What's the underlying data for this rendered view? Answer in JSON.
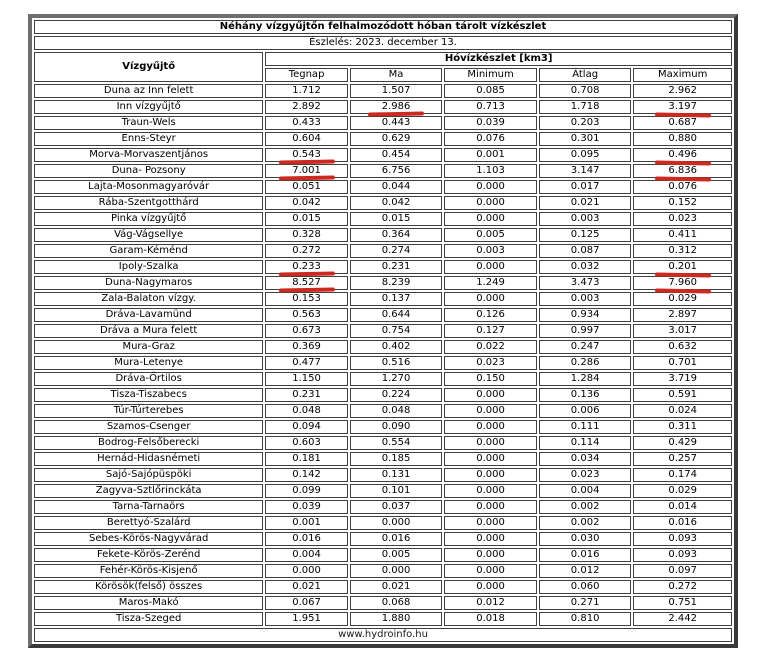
{
  "table": {
    "title": "Néhány vízgyűjtőn felhalmozódott hóban tárolt vízkészlet",
    "subtitle": "Észlelés: 2023. december 13.",
    "header": {
      "catchment_label": "Vízgyűjtő",
      "group_label": "Hóvízkészlet [km3]",
      "columns": [
        "Tegnap",
        "Ma",
        "Minimum",
        "Átlag",
        "Maximum"
      ]
    },
    "rows": [
      {
        "name": "Duna az Inn felett",
        "values": [
          "1.712",
          "1.507",
          "0.085",
          "0.708",
          "2.962"
        ]
      },
      {
        "name": "Inn vízgyűjtő",
        "values": [
          "2.892",
          "2.986",
          "0.713",
          "1.718",
          "3.197"
        ]
      },
      {
        "name": "Traun-Wels",
        "values": [
          "0.433",
          "0.443",
          "0.039",
          "0.203",
          "0.687"
        ]
      },
      {
        "name": "Enns-Steyr",
        "values": [
          "0.604",
          "0.629",
          "0.076",
          "0.301",
          "0.880"
        ]
      },
      {
        "name": "Morva-Morvaszentjános",
        "values": [
          "0.543",
          "0.454",
          "0.001",
          "0.095",
          "0.496"
        ]
      },
      {
        "name": "Duna- Pozsony",
        "values": [
          "7.001",
          "6.756",
          "1.103",
          "3.147",
          "6.836"
        ]
      },
      {
        "name": "Lajta-Mosonmagyaróvár",
        "values": [
          "0.051",
          "0.044",
          "0.000",
          "0.017",
          "0.076"
        ]
      },
      {
        "name": "Rába-Szentgotthárd",
        "values": [
          "0.042",
          "0.042",
          "0.000",
          "0.021",
          "0.152"
        ]
      },
      {
        "name": "Pinka vízgyűjtő",
        "values": [
          "0.015",
          "0.015",
          "0.000",
          "0.003",
          "0.023"
        ]
      },
      {
        "name": "Vág-Vágsellye",
        "values": [
          "0.328",
          "0.364",
          "0.005",
          "0.125",
          "0.411"
        ]
      },
      {
        "name": "Garam-Kéménd",
        "values": [
          "0.272",
          "0.274",
          "0.003",
          "0.087",
          "0.312"
        ]
      },
      {
        "name": "Ipoly-Szalka",
        "values": [
          "0.233",
          "0.231",
          "0.000",
          "0.032",
          "0.201"
        ]
      },
      {
        "name": "Duna-Nagymaros",
        "values": [
          "8.527",
          "8.239",
          "1.249",
          "3.473",
          "7.960"
        ]
      },
      {
        "name": "Zala-Balaton vízgy.",
        "values": [
          "0.153",
          "0.137",
          "0.000",
          "0.003",
          "0.029"
        ]
      },
      {
        "name": "Dráva-Lavamünd",
        "values": [
          "0.563",
          "0.644",
          "0.126",
          "0.934",
          "2.897"
        ]
      },
      {
        "name": "Dráva a Mura felett",
        "values": [
          "0.673",
          "0.754",
          "0.127",
          "0.997",
          "3.017"
        ]
      },
      {
        "name": "Mura-Graz",
        "values": [
          "0.369",
          "0.402",
          "0.022",
          "0.247",
          "0.632"
        ]
      },
      {
        "name": "Mura-Letenye",
        "values": [
          "0.477",
          "0.516",
          "0.023",
          "0.286",
          "0.701"
        ]
      },
      {
        "name": "Dráva-Őrtilos",
        "values": [
          "1.150",
          "1.270",
          "0.150",
          "1.284",
          "3.719"
        ]
      },
      {
        "name": "Tisza-Tiszabecs",
        "values": [
          "0.231",
          "0.224",
          "0.000",
          "0.136",
          "0.591"
        ]
      },
      {
        "name": "Túr-Túrterebes",
        "values": [
          "0.048",
          "0.048",
          "0.000",
          "0.006",
          "0.024"
        ]
      },
      {
        "name": "Szamos-Csenger",
        "values": [
          "0.094",
          "0.090",
          "0.000",
          "0.111",
          "0.311"
        ]
      },
      {
        "name": "Bodrog-Felsőberecki",
        "values": [
          "0.603",
          "0.554",
          "0.000",
          "0.114",
          "0.429"
        ]
      },
      {
        "name": "Hernád-Hidasnémeti",
        "values": [
          "0.181",
          "0.185",
          "0.000",
          "0.034",
          "0.257"
        ]
      },
      {
        "name": "Sajó-Sajópüspöki",
        "values": [
          "0.142",
          "0.131",
          "0.000",
          "0.023",
          "0.174"
        ]
      },
      {
        "name": "Zagyva-Sztlőrinckáta",
        "values": [
          "0.099",
          "0.101",
          "0.000",
          "0.004",
          "0.029"
        ]
      },
      {
        "name": "Tarna-Tarnaörs",
        "values": [
          "0.039",
          "0.037",
          "0.000",
          "0.002",
          "0.014"
        ]
      },
      {
        "name": "Berettyó-Szalárd",
        "values": [
          "0.001",
          "0.000",
          "0.000",
          "0.002",
          "0.016"
        ]
      },
      {
        "name": "Sebes-Körös-Nagyvárad",
        "values": [
          "0.016",
          "0.016",
          "0.000",
          "0.030",
          "0.093"
        ]
      },
      {
        "name": "Fekete-Körös-Zerénd",
        "values": [
          "0.004",
          "0.005",
          "0.000",
          "0.016",
          "0.093"
        ]
      },
      {
        "name": "Fehér-Körös-Kisjenő",
        "values": [
          "0.000",
          "0.000",
          "0.000",
          "0.012",
          "0.097"
        ]
      },
      {
        "name": "Körösök(felső) összes",
        "values": [
          "0.021",
          "0.021",
          "0.000",
          "0.060",
          "0.272"
        ]
      },
      {
        "name": "Maros-Makó",
        "values": [
          "0.067",
          "0.068",
          "0.012",
          "0.271",
          "0.751"
        ]
      },
      {
        "name": "Tisza-Szeged",
        "values": [
          "1.951",
          "1.880",
          "0.018",
          "0.810",
          "2.442"
        ]
      }
    ],
    "footer": "www.hydroinfo.hu"
  },
  "annotations": {
    "color": "#cc2a1f",
    "red_marks": [
      {
        "row": 1,
        "column": "ma"
      },
      {
        "row": 1,
        "column": "maximum"
      },
      {
        "row": 4,
        "column": "tegnap"
      },
      {
        "row": 4,
        "column": "maximum"
      },
      {
        "row": 5,
        "column": "tegnap"
      },
      {
        "row": 5,
        "column": "maximum"
      },
      {
        "row": 11,
        "column": "tegnap"
      },
      {
        "row": 11,
        "column": "maximum"
      },
      {
        "row": 12,
        "column": "tegnap"
      },
      {
        "row": 12,
        "column": "maximum"
      }
    ]
  },
  "colors": {
    "outer_frame_light": "#6e6e6e",
    "outer_frame_dark": "#3a3a3a",
    "cell_border": "#3f3f3f",
    "text": "#000000",
    "background": "#ffffff"
  }
}
